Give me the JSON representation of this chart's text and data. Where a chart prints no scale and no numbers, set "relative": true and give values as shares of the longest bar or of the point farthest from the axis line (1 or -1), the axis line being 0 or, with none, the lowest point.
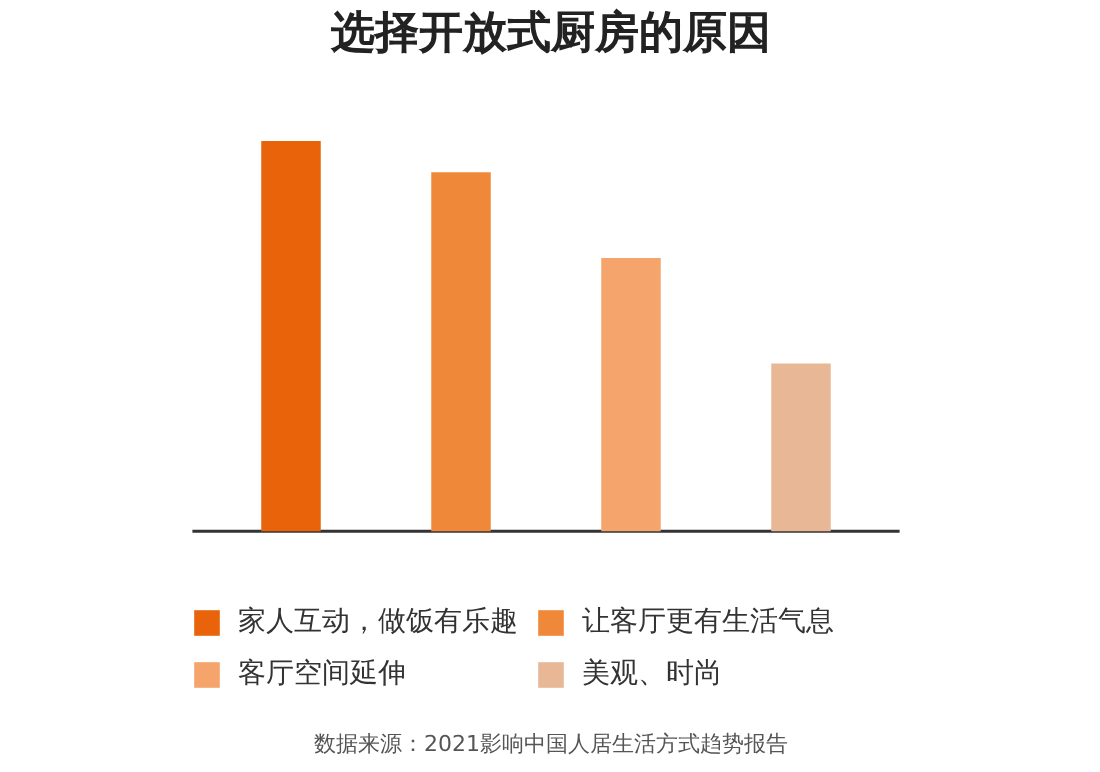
{
  "chart_data": {
    "type": "bar",
    "title": "选择开放式厨房的原因",
    "relative": true,
    "stacked": true,
    "categories": [
      null,
      null,
      null,
      null
    ],
    "series": [
      {
        "name": "家人互动，做饭有乐趣",
        "color": "#e8630a",
        "values": [
          1,
          null,
          null,
          null
        ]
      },
      {
        "name": "让客厅更有生活气息",
        "color": "#f0883a",
        "values": [
          null,
          0.92,
          null,
          null
        ]
      },
      {
        "name": "客厅空间延伸",
        "color": "#f5a46c",
        "values": [
          null,
          null,
          0.7,
          null
        ]
      },
      {
        "name": "美观、时尚",
        "color": "#e8b896",
        "values": [
          null,
          null,
          null,
          0.43
        ]
      }
    ],
    "legend": "bottom",
    "annotations": [
      "数据来源：2021影响中国人居生活方式趋势报告"
    ]
  }
}
